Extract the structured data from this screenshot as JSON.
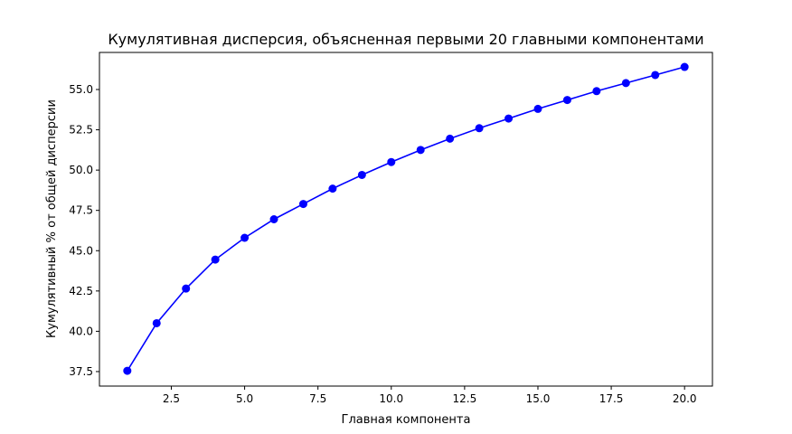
{
  "chart_data": {
    "type": "line",
    "title": "Кумулятивная дисперсия, объясненная первыми 20 главными компонентами",
    "xlabel": "Главная компонента",
    "ylabel": "Кумулятивный % от общей дисперсии",
    "xlim": [
      0.05,
      20.95
    ],
    "ylim": [
      36.6,
      57.3
    ],
    "xticks": [
      2.5,
      5.0,
      7.5,
      10.0,
      12.5,
      15.0,
      17.5,
      20.0
    ],
    "xtick_labels": [
      "2.5",
      "5.0",
      "7.5",
      "10.0",
      "12.5",
      "15.0",
      "17.5",
      "20.0"
    ],
    "yticks": [
      37.5,
      40.0,
      42.5,
      45.0,
      47.5,
      50.0,
      52.5,
      55.0
    ],
    "ytick_labels": [
      "37.5",
      "40.0",
      "42.5",
      "45.0",
      "47.5",
      "50.0",
      "52.5",
      "55.0"
    ],
    "grid": false,
    "color": "#0000ff",
    "marker": "circle",
    "series": [
      {
        "x": [
          1,
          2,
          3,
          4,
          5,
          6,
          7,
          8,
          9,
          10,
          11,
          12,
          13,
          14,
          15,
          16,
          17,
          18,
          19,
          20
        ],
        "values": [
          37.55,
          40.5,
          42.65,
          44.45,
          45.8,
          46.95,
          47.9,
          48.85,
          49.7,
          50.5,
          51.25,
          51.95,
          52.6,
          53.2,
          53.8,
          54.35,
          54.9,
          55.4,
          55.9,
          56.4
        ]
      }
    ]
  }
}
